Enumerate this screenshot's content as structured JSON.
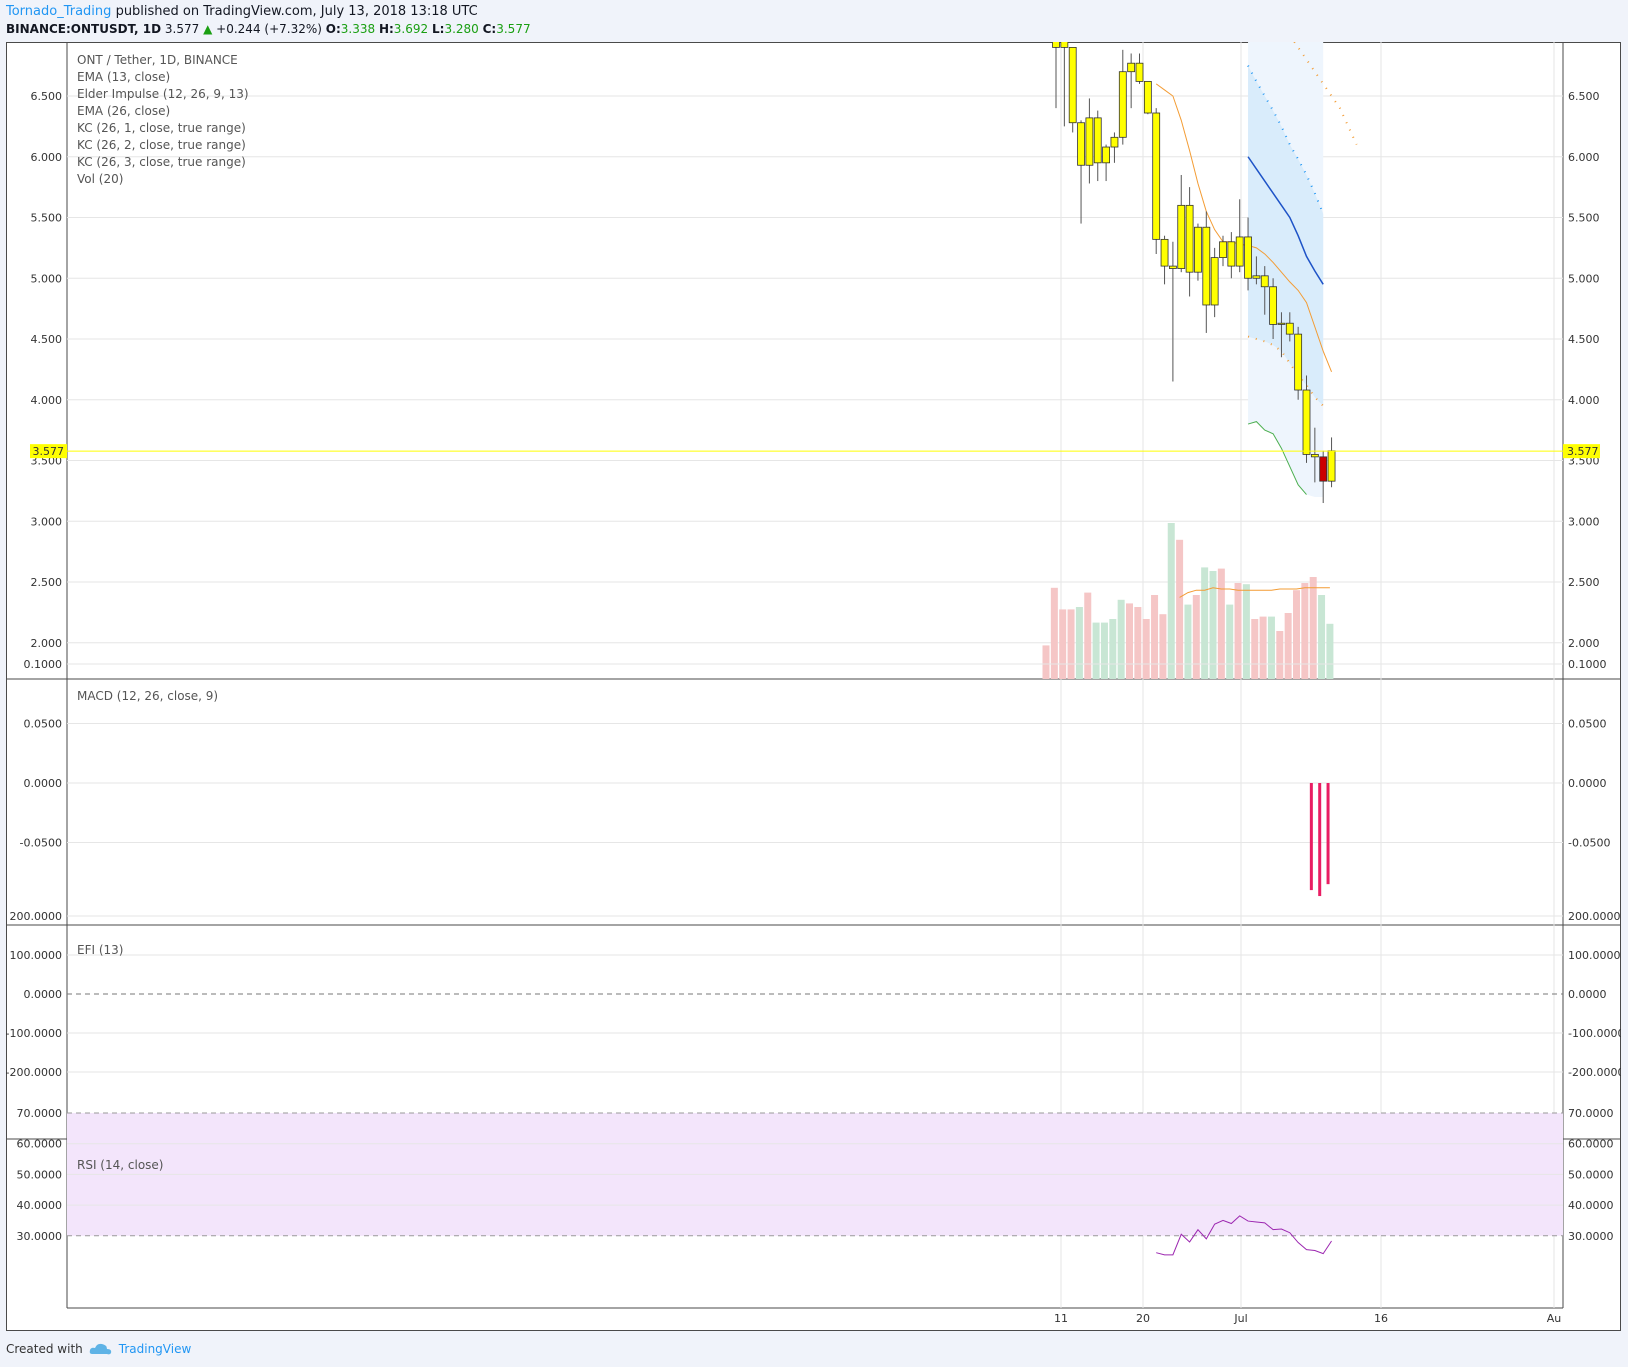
{
  "header": {
    "author": "Tornado_Trading",
    "published": "published on TradingView.com, July 13, 2018 13:18 UTC",
    "symbol": "BINANCE:ONTUSDT, 1D",
    "last": "3.577",
    "change": "+0.244 (+7.32%)",
    "o_label": "O:",
    "o": "3.338",
    "h_label": "H:",
    "h": "3.692",
    "l_label": "L:",
    "l": "3.280",
    "c_label": "C:",
    "c": "3.577"
  },
  "legend": {
    "title": "ONT / Tether, 1D, BINANCE",
    "items": [
      "EMA (13, close)",
      "Elder Impulse (12, 26, 9, 13)",
      "EMA (26, close)",
      "KC (26, 1, close, true range)",
      "KC (26, 2, close, true range)",
      "KC (26, 3, close, true range)",
      "Vol (20)"
    ]
  },
  "panes": {
    "macd": "MACD (12, 26, close, 9)",
    "efi": "EFI (13)",
    "rsi": "RSI (14, close)"
  },
  "footer": {
    "created": "Created with",
    "brand": "TradingView"
  },
  "colors": {
    "candle_up": "#ffff00",
    "candle_down": "#cc0000",
    "ema13": "#f39c34",
    "ema26": "#1e53c7",
    "macd_hist": "#e91e63",
    "rsi": "#9c27b0",
    "rsi_band": "#f3e5fb",
    "price_line": "#ffff00"
  },
  "chart_data": {
    "type": "candlestick",
    "price_axis": {
      "ticks": [
        "6.500",
        "6.000",
        "5.500",
        "5.000",
        "4.500",
        "4.000",
        "3.500",
        "3.000",
        "2.500",
        "2.000"
      ],
      "last_label": "3.577"
    },
    "x_ticks": [
      "11",
      "20",
      "Jul",
      "16",
      "Au"
    ],
    "candles": [
      {
        "o": 6.95,
        "h": 7.0,
        "l": 6.4,
        "c": 6.9
      },
      {
        "o": 6.95,
        "h": 7.0,
        "l": 6.25,
        "c": 6.9
      },
      {
        "o": 6.9,
        "h": 6.9,
        "l": 6.2,
        "c": 6.28
      },
      {
        "o": 6.28,
        "h": 6.3,
        "l": 5.45,
        "c": 5.93
      },
      {
        "o": 5.93,
        "h": 6.48,
        "l": 5.78,
        "c": 6.32
      },
      {
        "o": 6.32,
        "h": 6.38,
        "l": 5.8,
        "c": 5.95
      },
      {
        "o": 5.95,
        "h": 6.1,
        "l": 5.8,
        "c": 6.08
      },
      {
        "o": 6.08,
        "h": 6.2,
        "l": 5.95,
        "c": 6.16
      },
      {
        "o": 6.16,
        "h": 6.88,
        "l": 6.1,
        "c": 6.7
      },
      {
        "o": 6.7,
        "h": 6.85,
        "l": 6.4,
        "c": 6.77
      },
      {
        "o": 6.77,
        "h": 6.85,
        "l": 6.6,
        "c": 6.62
      },
      {
        "o": 6.62,
        "h": 6.62,
        "l": 6.35,
        "c": 6.36
      },
      {
        "o": 6.36,
        "h": 6.4,
        "l": 5.2,
        "c": 5.32
      },
      {
        "o": 5.32,
        "h": 5.35,
        "l": 4.95,
        "c": 5.1
      },
      {
        "o": 5.1,
        "h": 5.3,
        "l": 4.15,
        "c": 5.08
      },
      {
        "o": 5.08,
        "h": 5.85,
        "l": 5.05,
        "c": 5.6
      },
      {
        "o": 5.6,
        "h": 5.75,
        "l": 4.85,
        "c": 5.05
      },
      {
        "o": 5.05,
        "h": 5.45,
        "l": 4.98,
        "c": 5.42
      },
      {
        "o": 5.42,
        "h": 5.55,
        "l": 4.55,
        "c": 4.78
      },
      {
        "o": 4.78,
        "h": 5.25,
        "l": 4.68,
        "c": 5.17
      },
      {
        "o": 5.17,
        "h": 5.35,
        "l": 5.1,
        "c": 5.3
      },
      {
        "o": 5.3,
        "h": 5.38,
        "l": 5.0,
        "c": 5.1
      },
      {
        "o": 5.1,
        "h": 5.65,
        "l": 5.05,
        "c": 5.34
      },
      {
        "o": 5.34,
        "h": 5.5,
        "l": 4.9,
        "c": 5.0
      },
      {
        "o": 5.0,
        "h": 5.18,
        "l": 4.95,
        "c": 5.02
      },
      {
        "o": 5.02,
        "h": 5.1,
        "l": 4.7,
        "c": 4.93
      },
      {
        "o": 4.93,
        "h": 5.0,
        "l": 4.5,
        "c": 4.62
      },
      {
        "o": 4.62,
        "h": 4.72,
        "l": 4.35,
        "c": 4.63
      },
      {
        "o": 4.63,
        "h": 4.72,
        "l": 4.48,
        "c": 4.54
      },
      {
        "o": 4.54,
        "h": 4.6,
        "l": 4.0,
        "c": 4.08
      },
      {
        "o": 4.08,
        "h": 4.2,
        "l": 3.48,
        "c": 3.55
      },
      {
        "o": 3.55,
        "h": 3.77,
        "l": 3.32,
        "c": 3.53
      },
      {
        "o": 3.53,
        "h": 3.58,
        "l": 3.15,
        "c": 3.33
      },
      {
        "o": 3.33,
        "h": 3.69,
        "l": 3.28,
        "c": 3.58
      }
    ],
    "volume": [
      1.98,
      2.46,
      2.28,
      2.28,
      2.3,
      2.42,
      2.17,
      2.17,
      2.2,
      2.36,
      2.33,
      2.3,
      2.2,
      2.4,
      2.24,
      3.0,
      2.86,
      2.32,
      2.4,
      2.63,
      2.6,
      2.62,
      2.32,
      2.5,
      2.49,
      2.2,
      2.22,
      2.22,
      2.1,
      2.25,
      2.44,
      2.5,
      2.55,
      2.4,
      2.16
    ],
    "vol_ma": [
      2.38,
      2.42,
      2.44,
      2.44,
      2.46,
      2.45,
      2.45,
      2.44,
      2.44,
      2.44,
      2.44,
      2.44,
      2.45,
      2.45,
      2.45,
      2.46,
      2.46,
      2.46,
      2.46
    ],
    "ema13": [
      6.6,
      6.55,
      6.5,
      6.3,
      6.05,
      5.78,
      5.55,
      5.4,
      5.3,
      5.3,
      5.28,
      5.27,
      5.25,
      5.2,
      5.13,
      5.05,
      4.97,
      4.9,
      4.8,
      4.6,
      4.4,
      4.23
    ],
    "kc_mid": [
      6.0,
      5.9,
      5.8,
      5.7,
      5.6,
      5.5,
      5.35,
      5.18,
      5.06,
      4.95
    ],
    "kc1_upper": [
      6.75,
      6.62,
      6.5,
      6.38,
      6.25,
      6.1,
      5.98,
      5.85,
      5.7,
      5.53
    ],
    "kc1_lower": [
      4.52,
      4.5,
      4.48,
      4.45,
      4.4,
      4.3,
      4.2,
      4.12,
      4.02,
      3.95
    ],
    "kc2_upper": [
      7.0,
      6.9,
      6.8,
      6.7,
      6.6,
      6.5,
      6.4,
      6.25,
      6.1
    ],
    "kc2_lower": [
      3.8,
      3.82,
      3.75,
      3.72,
      3.6,
      3.45,
      3.3,
      3.22
    ],
    "macd_hist": [
      -0.09,
      -0.095,
      -0.085
    ],
    "rsi": [
      24.5,
      23.8,
      23.8,
      30.5,
      28,
      32,
      29,
      33.8,
      35,
      34,
      36.5,
      34.8,
      34.5,
      34.2,
      32,
      32.2,
      31,
      27.8,
      25.5,
      25.2,
      24.2,
      28.3
    ]
  }
}
